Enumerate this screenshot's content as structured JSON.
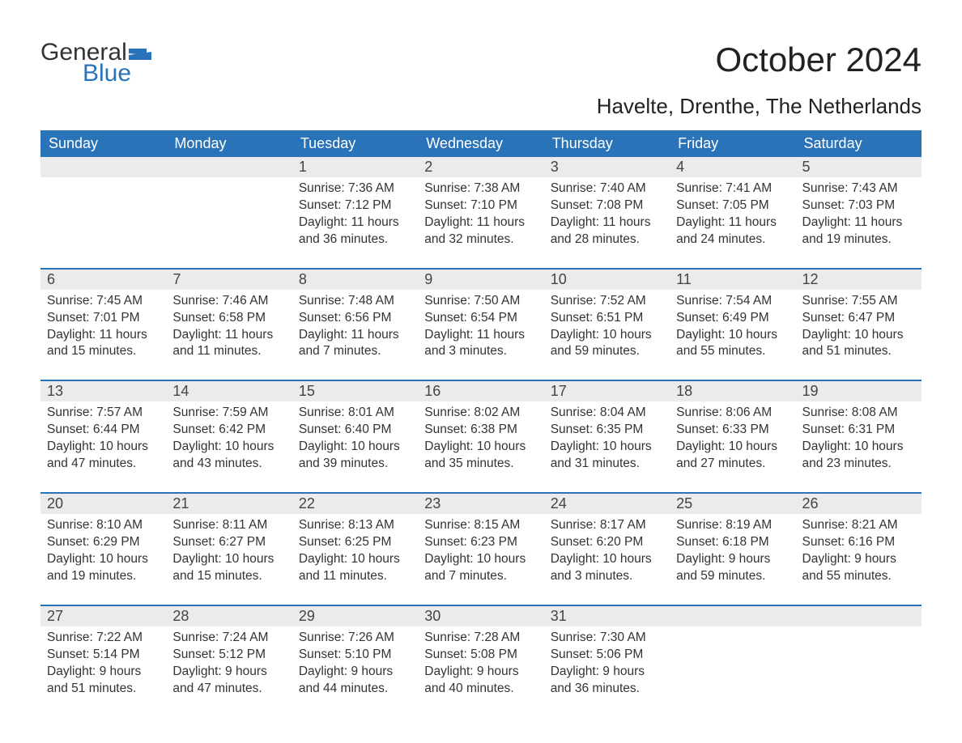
{
  "brand": {
    "word1": "General",
    "word2": "Blue",
    "flag_color": "#2a73b8",
    "text_color": "#333"
  },
  "title": "October 2024",
  "location": "Havelte, Drenthe, The Netherlands",
  "colors": {
    "header_bg": "#2a73b8",
    "header_text": "#ffffff",
    "daynum_bg": "#ebebeb",
    "week_border": "#2a73b8",
    "body_text": "#333333",
    "page_bg": "#ffffff"
  },
  "typography": {
    "title_fontsize": 42,
    "location_fontsize": 26,
    "dow_fontsize": 18,
    "daynum_fontsize": 18,
    "body_fontsize": 15.5
  },
  "days_of_week": [
    "Sunday",
    "Monday",
    "Tuesday",
    "Wednesday",
    "Thursday",
    "Friday",
    "Saturday"
  ],
  "weeks": [
    [
      null,
      null,
      {
        "n": "1",
        "sunrise": "7:36 AM",
        "sunset": "7:12 PM",
        "daylight": "11 hours and 36 minutes."
      },
      {
        "n": "2",
        "sunrise": "7:38 AM",
        "sunset": "7:10 PM",
        "daylight": "11 hours and 32 minutes."
      },
      {
        "n": "3",
        "sunrise": "7:40 AM",
        "sunset": "7:08 PM",
        "daylight": "11 hours and 28 minutes."
      },
      {
        "n": "4",
        "sunrise": "7:41 AM",
        "sunset": "7:05 PM",
        "daylight": "11 hours and 24 minutes."
      },
      {
        "n": "5",
        "sunrise": "7:43 AM",
        "sunset": "7:03 PM",
        "daylight": "11 hours and 19 minutes."
      }
    ],
    [
      {
        "n": "6",
        "sunrise": "7:45 AM",
        "sunset": "7:01 PM",
        "daylight": "11 hours and 15 minutes."
      },
      {
        "n": "7",
        "sunrise": "7:46 AM",
        "sunset": "6:58 PM",
        "daylight": "11 hours and 11 minutes."
      },
      {
        "n": "8",
        "sunrise": "7:48 AM",
        "sunset": "6:56 PM",
        "daylight": "11 hours and 7 minutes."
      },
      {
        "n": "9",
        "sunrise": "7:50 AM",
        "sunset": "6:54 PM",
        "daylight": "11 hours and 3 minutes."
      },
      {
        "n": "10",
        "sunrise": "7:52 AM",
        "sunset": "6:51 PM",
        "daylight": "10 hours and 59 minutes."
      },
      {
        "n": "11",
        "sunrise": "7:54 AM",
        "sunset": "6:49 PM",
        "daylight": "10 hours and 55 minutes."
      },
      {
        "n": "12",
        "sunrise": "7:55 AM",
        "sunset": "6:47 PM",
        "daylight": "10 hours and 51 minutes."
      }
    ],
    [
      {
        "n": "13",
        "sunrise": "7:57 AM",
        "sunset": "6:44 PM",
        "daylight": "10 hours and 47 minutes."
      },
      {
        "n": "14",
        "sunrise": "7:59 AM",
        "sunset": "6:42 PM",
        "daylight": "10 hours and 43 minutes."
      },
      {
        "n": "15",
        "sunrise": "8:01 AM",
        "sunset": "6:40 PM",
        "daylight": "10 hours and 39 minutes."
      },
      {
        "n": "16",
        "sunrise": "8:02 AM",
        "sunset": "6:38 PM",
        "daylight": "10 hours and 35 minutes."
      },
      {
        "n": "17",
        "sunrise": "8:04 AM",
        "sunset": "6:35 PM",
        "daylight": "10 hours and 31 minutes."
      },
      {
        "n": "18",
        "sunrise": "8:06 AM",
        "sunset": "6:33 PM",
        "daylight": "10 hours and 27 minutes."
      },
      {
        "n": "19",
        "sunrise": "8:08 AM",
        "sunset": "6:31 PM",
        "daylight": "10 hours and 23 minutes."
      }
    ],
    [
      {
        "n": "20",
        "sunrise": "8:10 AM",
        "sunset": "6:29 PM",
        "daylight": "10 hours and 19 minutes."
      },
      {
        "n": "21",
        "sunrise": "8:11 AM",
        "sunset": "6:27 PM",
        "daylight": "10 hours and 15 minutes."
      },
      {
        "n": "22",
        "sunrise": "8:13 AM",
        "sunset": "6:25 PM",
        "daylight": "10 hours and 11 minutes."
      },
      {
        "n": "23",
        "sunrise": "8:15 AM",
        "sunset": "6:23 PM",
        "daylight": "10 hours and 7 minutes."
      },
      {
        "n": "24",
        "sunrise": "8:17 AM",
        "sunset": "6:20 PM",
        "daylight": "10 hours and 3 minutes."
      },
      {
        "n": "25",
        "sunrise": "8:19 AM",
        "sunset": "6:18 PM",
        "daylight": "9 hours and 59 minutes."
      },
      {
        "n": "26",
        "sunrise": "8:21 AM",
        "sunset": "6:16 PM",
        "daylight": "9 hours and 55 minutes."
      }
    ],
    [
      {
        "n": "27",
        "sunrise": "7:22 AM",
        "sunset": "5:14 PM",
        "daylight": "9 hours and 51 minutes."
      },
      {
        "n": "28",
        "sunrise": "7:24 AM",
        "sunset": "5:12 PM",
        "daylight": "9 hours and 47 minutes."
      },
      {
        "n": "29",
        "sunrise": "7:26 AM",
        "sunset": "5:10 PM",
        "daylight": "9 hours and 44 minutes."
      },
      {
        "n": "30",
        "sunrise": "7:28 AM",
        "sunset": "5:08 PM",
        "daylight": "9 hours and 40 minutes."
      },
      {
        "n": "31",
        "sunrise": "7:30 AM",
        "sunset": "5:06 PM",
        "daylight": "9 hours and 36 minutes."
      },
      null,
      null
    ]
  ],
  "labels": {
    "sunrise": "Sunrise: ",
    "sunset": "Sunset: ",
    "daylight": "Daylight: "
  }
}
